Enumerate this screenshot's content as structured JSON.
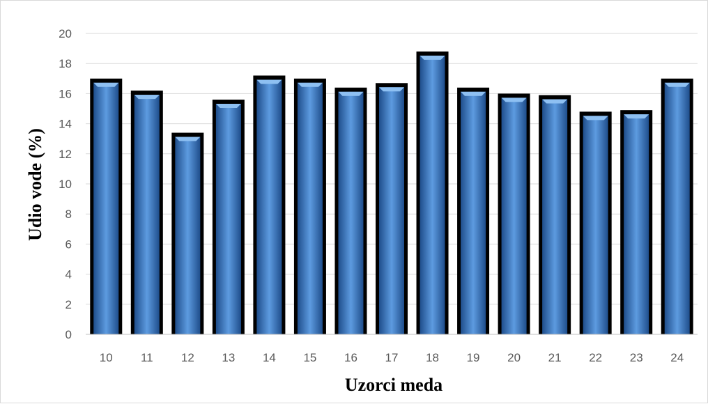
{
  "chart_data": {
    "type": "bar",
    "title": "",
    "xlabel": "Uzorci meda",
    "ylabel": "Udio vode (%)",
    "categories": [
      "10",
      "11",
      "12",
      "13",
      "14",
      "15",
      "16",
      "17",
      "18",
      "19",
      "20",
      "21",
      "22",
      "23",
      "24"
    ],
    "values": [
      17.0,
      16.2,
      13.4,
      15.6,
      17.2,
      17.0,
      16.4,
      16.7,
      18.8,
      16.4,
      16.0,
      15.9,
      14.8,
      14.9,
      17.0
    ],
    "ylim": [
      0,
      20
    ],
    "yticks": [
      "0",
      "2",
      "4",
      "6",
      "8",
      "10",
      "12",
      "14",
      "16",
      "18",
      "20"
    ],
    "grid": true,
    "legend": "none",
    "colors": {
      "bar": "#4a86d4",
      "bar_highlight": "#8ec0f2",
      "bar_outline": "#000000",
      "grid": "#d9d9d9"
    }
  }
}
